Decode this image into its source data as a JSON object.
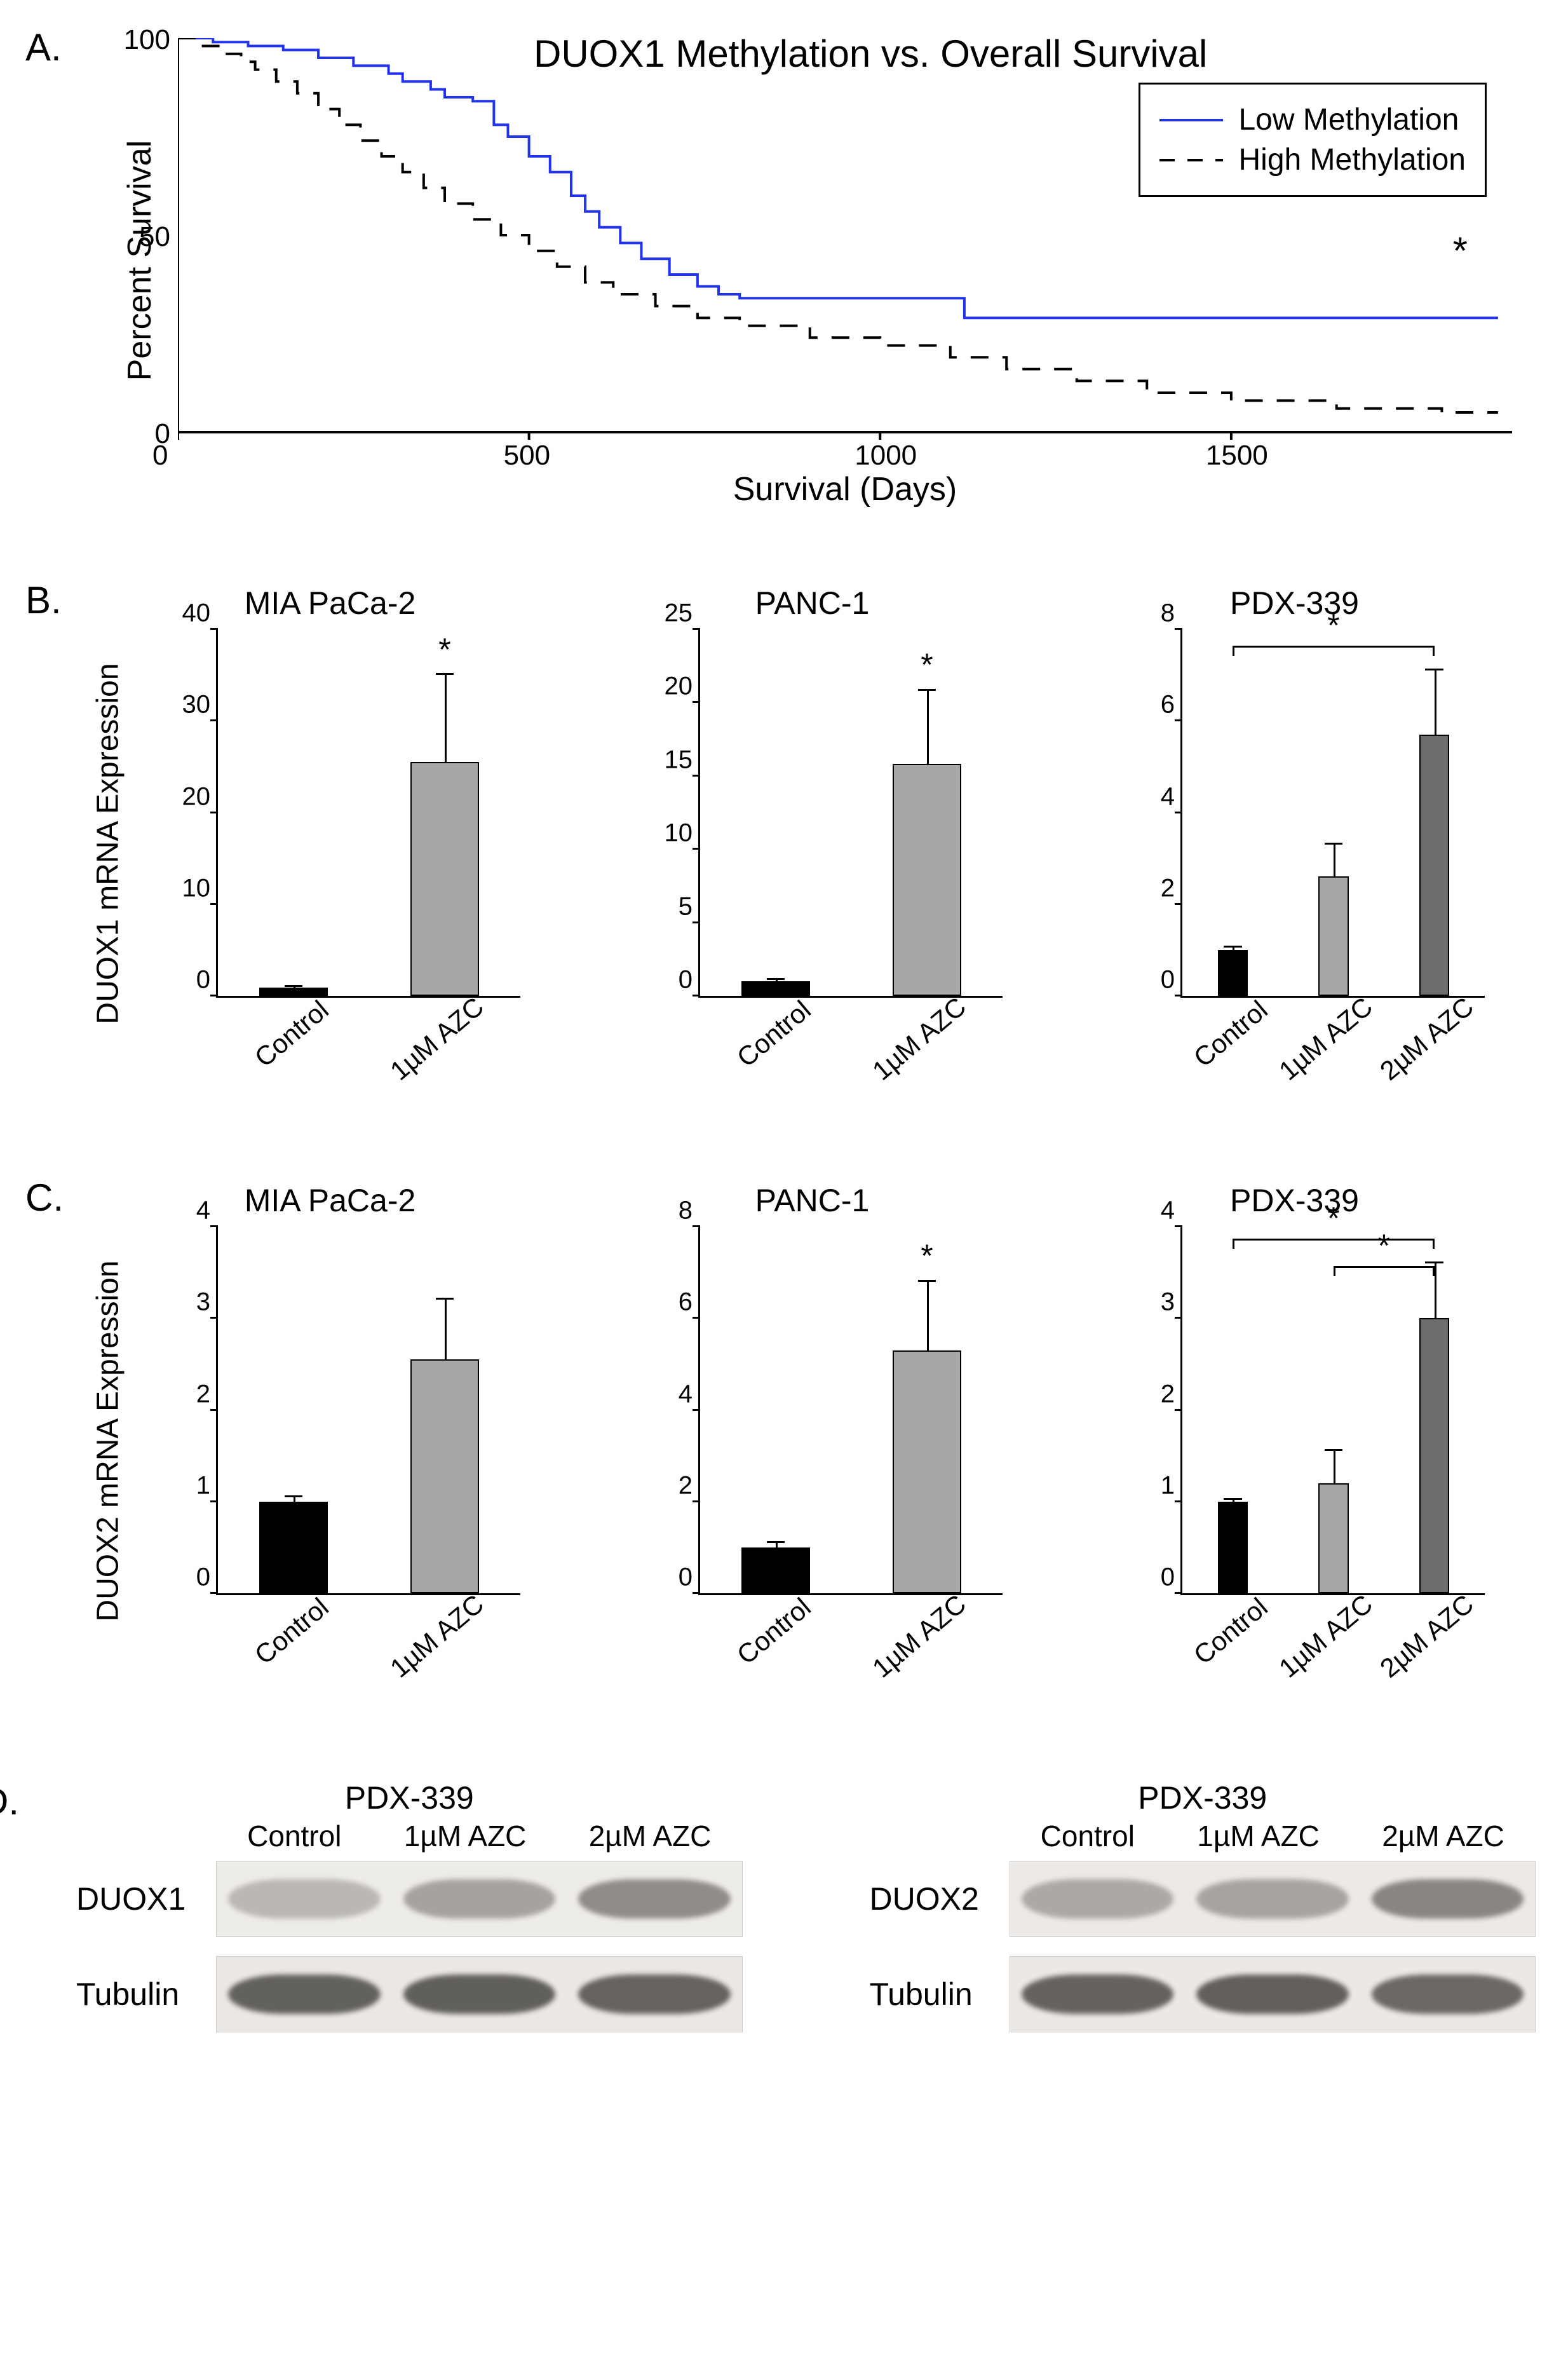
{
  "panel_labels": {
    "A": "A.",
    "B": "B.",
    "C": "C.",
    "D": "D."
  },
  "survival": {
    "type": "kaplan-meier",
    "title": "DUOX1 Methylation vs. Overall Survival",
    "ylabel": "Percent Survival",
    "xlabel": "Survival (Days)",
    "xlim": [
      0,
      1900
    ],
    "ylim": [
      0,
      100
    ],
    "xticks": [
      0,
      500,
      1000,
      1500
    ],
    "yticks": [
      0,
      50,
      100
    ],
    "series": [
      {
        "name": "Low Methylation",
        "color": "#2233ee",
        "dash": "solid",
        "points": [
          [
            0,
            100
          ],
          [
            50,
            99
          ],
          [
            100,
            98
          ],
          [
            150,
            97
          ],
          [
            200,
            95
          ],
          [
            250,
            93
          ],
          [
            300,
            91
          ],
          [
            320,
            89
          ],
          [
            360,
            87
          ],
          [
            380,
            85
          ],
          [
            420,
            84
          ],
          [
            450,
            78
          ],
          [
            470,
            75
          ],
          [
            500,
            70
          ],
          [
            530,
            66
          ],
          [
            560,
            60
          ],
          [
            580,
            56
          ],
          [
            600,
            52
          ],
          [
            630,
            48
          ],
          [
            660,
            44
          ],
          [
            700,
            40
          ],
          [
            740,
            37
          ],
          [
            770,
            35
          ],
          [
            800,
            34
          ],
          [
            900,
            34
          ],
          [
            1000,
            34
          ],
          [
            1100,
            34
          ],
          [
            1120,
            29
          ],
          [
            1300,
            29
          ],
          [
            1500,
            29
          ],
          [
            1700,
            29
          ],
          [
            1880,
            29
          ]
        ]
      },
      {
        "name": "High Methylation",
        "color": "#000000",
        "dash": "dashed",
        "points": [
          [
            0,
            100
          ],
          [
            30,
            98
          ],
          [
            60,
            96
          ],
          [
            90,
            94
          ],
          [
            110,
            92
          ],
          [
            140,
            89
          ],
          [
            170,
            86
          ],
          [
            200,
            82
          ],
          [
            230,
            78
          ],
          [
            260,
            74
          ],
          [
            290,
            70
          ],
          [
            320,
            66
          ],
          [
            350,
            62
          ],
          [
            380,
            58
          ],
          [
            420,
            54
          ],
          [
            460,
            50
          ],
          [
            500,
            46
          ],
          [
            540,
            42
          ],
          [
            580,
            38
          ],
          [
            620,
            35
          ],
          [
            680,
            32
          ],
          [
            740,
            29
          ],
          [
            800,
            27
          ],
          [
            900,
            24
          ],
          [
            1000,
            22
          ],
          [
            1100,
            19
          ],
          [
            1180,
            16
          ],
          [
            1280,
            13
          ],
          [
            1380,
            10
          ],
          [
            1500,
            8
          ],
          [
            1650,
            6
          ],
          [
            1800,
            5
          ],
          [
            1880,
            5
          ]
        ]
      }
    ],
    "legend": {
      "items": [
        "Low Methylation",
        "High Methylation"
      ]
    },
    "significance_star": "*",
    "colors": {
      "axis": "#000000",
      "background": "#ffffff"
    },
    "font_sizes": {
      "title": 60,
      "axis_label": 52,
      "tick": 44,
      "legend": 48
    },
    "line_width": 4
  },
  "panelB": {
    "ylabel": "DUOX1 mRNA Expression",
    "charts": [
      {
        "title": "MIA PaCa-2",
        "ylim": [
          0,
          40
        ],
        "ytick_step": 10,
        "categories": [
          "Control",
          "1µM AZC"
        ],
        "values": [
          0.9,
          25.5
        ],
        "errors": [
          0.1,
          9.5
        ],
        "colors": [
          "#000000",
          "#a7a7a7"
        ],
        "bar_width": 0.45,
        "stars": [
          {
            "over_bar": 1,
            "text": "*"
          }
        ],
        "sig_lines": []
      },
      {
        "title": "PANC-1",
        "ylim": [
          0,
          25
        ],
        "ytick_step": 5,
        "categories": [
          "Control",
          "1µM AZC"
        ],
        "values": [
          1.0,
          15.8
        ],
        "errors": [
          0.1,
          5.0
        ],
        "colors": [
          "#000000",
          "#a7a7a7"
        ],
        "bar_width": 0.45,
        "stars": [
          {
            "over_bar": 1,
            "text": "*"
          }
        ],
        "sig_lines": []
      },
      {
        "title": "PDX-339",
        "ylim": [
          0,
          8
        ],
        "ytick_step": 2,
        "categories": [
          "Control",
          "1µM AZC",
          "2µM AZC"
        ],
        "values": [
          1.0,
          2.6,
          5.7
        ],
        "errors": [
          0.05,
          0.7,
          1.4
        ],
        "colors": [
          "#000000",
          "#a7a7a7",
          "#6d6d6d"
        ],
        "bar_width": 0.3,
        "stars": [],
        "sig_lines": [
          {
            "from": 0,
            "to": 2,
            "y": 7.6,
            "text": "*"
          }
        ]
      }
    ]
  },
  "panelC": {
    "ylabel": "DUOX2 mRNA Expression",
    "charts": [
      {
        "title": "MIA PaCa-2",
        "ylim": [
          0,
          4
        ],
        "ytick_step": 1,
        "categories": [
          "Control",
          "1µM AZC"
        ],
        "values": [
          1.0,
          2.55
        ],
        "errors": [
          0.05,
          0.65
        ],
        "colors": [
          "#000000",
          "#a7a7a7"
        ],
        "bar_width": 0.45,
        "stars": [],
        "sig_lines": []
      },
      {
        "title": "PANC-1",
        "ylim": [
          0,
          8
        ],
        "ytick_step": 2,
        "categories": [
          "Control",
          "1µM AZC"
        ],
        "values": [
          1.0,
          5.3
        ],
        "errors": [
          0.1,
          1.5
        ],
        "colors": [
          "#000000",
          "#a7a7a7"
        ],
        "bar_width": 0.45,
        "stars": [
          {
            "over_bar": 1,
            "text": "*"
          }
        ],
        "sig_lines": []
      },
      {
        "title": "PDX-339",
        "ylim": [
          0,
          4
        ],
        "ytick_step": 1,
        "categories": [
          "Control",
          "1µM AZC",
          "2µM AZC"
        ],
        "values": [
          1.0,
          1.2,
          3.0
        ],
        "errors": [
          0.02,
          0.35,
          0.6
        ],
        "colors": [
          "#000000",
          "#a7a7a7",
          "#6d6d6d"
        ],
        "bar_width": 0.3,
        "stars": [],
        "sig_lines": [
          {
            "from": 0,
            "to": 2,
            "y": 3.85,
            "text": "*"
          },
          {
            "from": 1,
            "to": 2,
            "y": 3.55,
            "text": "*"
          }
        ]
      }
    ]
  },
  "panelD": {
    "groups": [
      {
        "cell_line": "PDX-339",
        "lane_labels": [
          "Control",
          "1µM AZC",
          "2µM AZC"
        ],
        "rows": [
          {
            "protein": "DUOX1",
            "band_intensity": [
              0.25,
              0.5,
              0.75
            ],
            "band_color": "#7a7674",
            "bg": "#eeece9"
          },
          {
            "protein": "Tubulin",
            "band_intensity": [
              0.9,
              0.92,
              0.88
            ],
            "band_color": "#595754",
            "bg": "#eae7e4"
          }
        ]
      },
      {
        "cell_line": "PDX-339",
        "lane_labels": [
          "Control",
          "1µM AZC",
          "2µM AZC"
        ],
        "rows": [
          {
            "protein": "DUOX2",
            "band_intensity": [
              0.4,
              0.45,
              0.8
            ],
            "band_color": "#7a7470",
            "bg": "#ece9e6"
          },
          {
            "protein": "Tubulin",
            "band_intensity": [
              0.9,
              0.93,
              0.85
            ],
            "band_color": "#5b5855",
            "bg": "#ebe8e5"
          }
        ]
      }
    ]
  },
  "global_style": {
    "background_color": "#ffffff",
    "axis_color": "#000000",
    "font_family": "Arial",
    "border_width": 3
  }
}
